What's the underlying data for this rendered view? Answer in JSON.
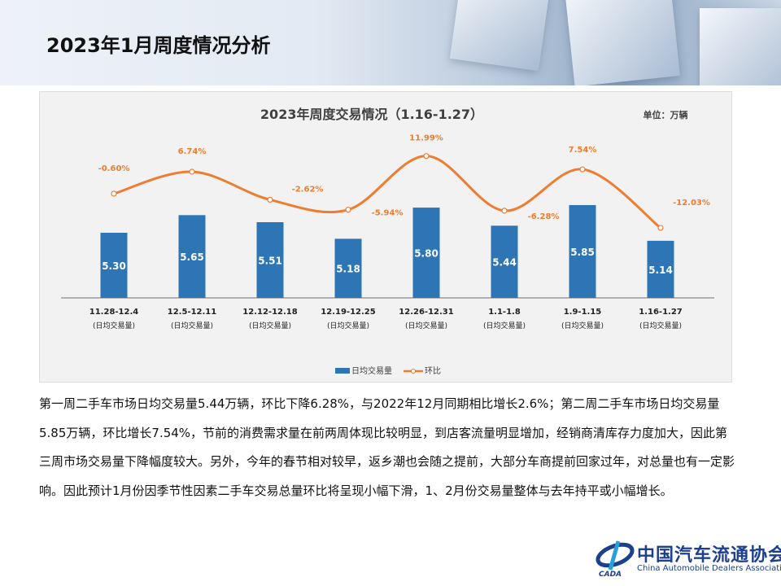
{
  "page_title": "2023年1月周度情况分析",
  "chart_data": {
    "type": "bar+line",
    "title": "2023年周度交易情况（1.16-1.27）",
    "unit_label": "单位：万辆",
    "categories": [
      "11.28-12.4",
      "12.5-12.11",
      "12.12-12.18",
      "12.19-12.25",
      "12.26-12.31",
      "1.1-1.8",
      "1.9-1.15",
      "1.16-1.27"
    ],
    "category_sublabel": "(日均交易量)",
    "series": [
      {
        "name": "日均交易量",
        "type": "bar",
        "color": "#2e75b6",
        "values": [
          5.3,
          5.65,
          5.51,
          5.18,
          5.8,
          5.44,
          5.85,
          5.14
        ],
        "labels": [
          "5.30",
          "5.65",
          "5.51",
          "5.18",
          "5.80",
          "5.44",
          "5.85",
          "5.14"
        ]
      },
      {
        "name": "环比",
        "type": "line",
        "smooth": true,
        "color": "#ed7d31",
        "values": [
          -0.6,
          6.74,
          -2.62,
          -5.94,
          11.99,
          -6.28,
          7.54,
          -12.03
        ],
        "labels": [
          "-0.60%",
          "6.74%",
          "-2.62%",
          "-5.94%",
          "11.99%",
          "-6.28%",
          "7.54%",
          "-12.03%"
        ]
      }
    ],
    "legend_position": "bottom",
    "grid": false
  },
  "paragraph": "第一周二手车市场日均交易量5.44万辆，环比下降6.28%，与2022年12月同期相比增长2.6%；第二周二手车市场日均交易量5.85万辆，环比增长7.54%，节前的消费需求量在前两周体现比较明显，到店客流量明显增加，经销商清库存力度加大，因此第三周市场交易量下降幅度较大。另外，今年的春节相对较早，返乡潮也会随之提前，大部分车商提前回家过年，对总量也有一定影响。因此预计1月份因季节性因素二手车交易总量环比将呈现小幅下滑，1、2月份交易量整体与去年持平或小幅增长。",
  "logo": {
    "cn": "中国汽车流通协会",
    "en": "China Automobile Dealers Association",
    "mark": "CADA"
  }
}
